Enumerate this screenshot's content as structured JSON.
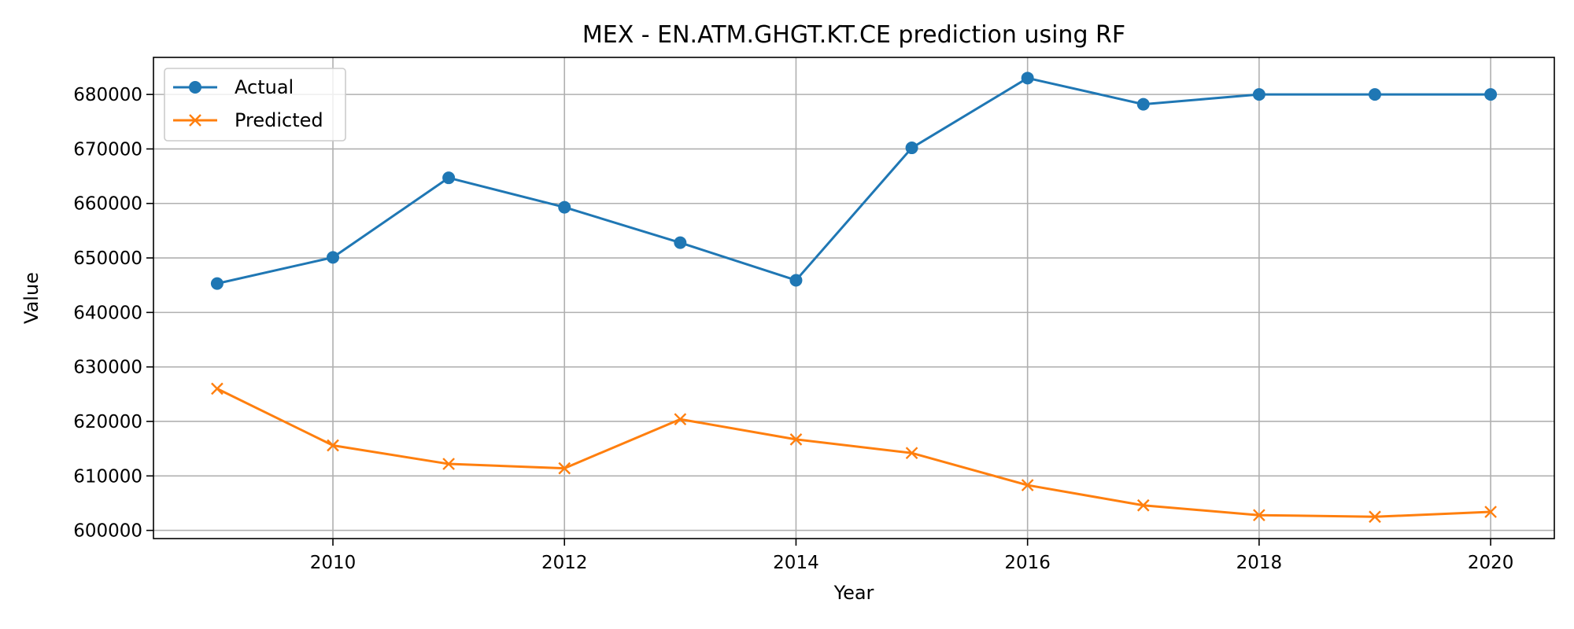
{
  "chart_data": {
    "type": "line",
    "title": "MEX - EN.ATM.GHGT.KT.CE prediction using RF",
    "xlabel": "Year",
    "ylabel": "Value",
    "x": [
      2009,
      2010,
      2011,
      2012,
      2013,
      2014,
      2015,
      2016,
      2017,
      2018,
      2019,
      2020
    ],
    "xlim": [
      2008.45,
      2020.55
    ],
    "ylim": [
      598500,
      686800
    ],
    "xticks": [
      2010,
      2012,
      2014,
      2016,
      2018,
      2020
    ],
    "xtick_labels": [
      "2010",
      "2012",
      "2014",
      "2016",
      "2018",
      "2020"
    ],
    "yticks": [
      600000,
      610000,
      620000,
      630000,
      640000,
      650000,
      660000,
      670000,
      680000
    ],
    "ytick_labels": [
      "600000",
      "610000",
      "620000",
      "630000",
      "640000",
      "650000",
      "660000",
      "670000",
      "680000"
    ],
    "grid": true,
    "legend_position": "top-left",
    "series": [
      {
        "name": "Actual",
        "color": "#1f77b4",
        "marker": "circle",
        "values": [
          645300,
          650100,
          664700,
          659300,
          652800,
          645900,
          670200,
          683000,
          678200,
          680000,
          680000,
          680000
        ]
      },
      {
        "name": "Predicted",
        "color": "#ff7f0e",
        "marker": "x",
        "values": [
          626000,
          615600,
          612200,
          611400,
          620400,
          616700,
          614200,
          608300,
          604600,
          602800,
          602500,
          603400
        ]
      }
    ]
  }
}
